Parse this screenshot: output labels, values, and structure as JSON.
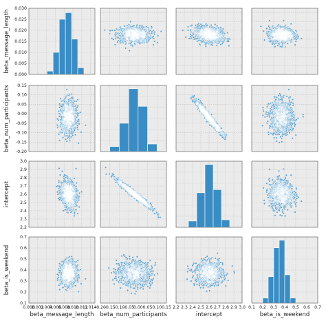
{
  "chart_data": {
    "type": "scatter",
    "kind": "pairplot",
    "variables": [
      "beta_message_length",
      "beta_num_participants",
      "intercept",
      "beta_is_weekend"
    ],
    "labels": [
      "beta_message_length",
      "beta_num_participants",
      "intercept",
      "beta_is_weekend"
    ],
    "colors": {
      "mark": "#3a8dc4",
      "edge": "#ffffff",
      "panel_bg": "#ebebeb",
      "grid": "#c4c4c4"
    },
    "grid": true,
    "axes": {
      "beta_message_length": {
        "lim": [
          0.0,
          0.015
        ],
        "ticks": [
          "0.000",
          "0.002",
          "0.004",
          "0.006",
          "0.008",
          "0.010",
          "0.012",
          "0.014"
        ],
        "tick_values": [
          0,
          0.002,
          0.004,
          0.006,
          0.008,
          0.01,
          0.012,
          0.014
        ]
      },
      "beta_num_participants": {
        "lim": [
          -0.2,
          0.15
        ],
        "ticks": [
          "-0.20",
          "-0.15",
          "-0.10",
          "-0.05",
          "0.00",
          "0.05",
          "0.10",
          "0.15"
        ],
        "tick_values": [
          -0.2,
          -0.15,
          -0.1,
          -0.05,
          0.0,
          0.05,
          0.1,
          0.15
        ]
      },
      "intercept": {
        "lim": [
          2.2,
          3.0
        ],
        "ticks": [
          "2.2",
          "2.3",
          "2.4",
          "2.5",
          "2.6",
          "2.7",
          "2.8",
          "2.9",
          "3.0"
        ],
        "tick_values": [
          2.2,
          2.3,
          2.4,
          2.5,
          2.6,
          2.7,
          2.8,
          2.9,
          3.0
        ]
      },
      "beta_is_weekend": {
        "lim": [
          0.1,
          0.7
        ],
        "ticks": [
          "0.1",
          "0.2",
          "0.3",
          "0.4",
          "0.5",
          "0.6",
          "0.7"
        ],
        "tick_values": [
          0.1,
          0.2,
          0.3,
          0.4,
          0.5,
          0.6,
          0.7
        ]
      }
    },
    "diag_hist_axes": {
      "ticks": [
        "0.000",
        "0.005",
        "0.010",
        "0.015",
        "0.020",
        "0.025",
        "0.030"
      ],
      "tick_values": [
        0,
        0.005,
        0.01,
        0.015,
        0.02,
        0.025,
        0.03
      ],
      "lim": [
        0,
        0.03
      ]
    },
    "histograms": {
      "beta_message_length": {
        "bin_edges": [
          0.0041,
          0.0055,
          0.0069,
          0.0083,
          0.0097,
          0.0111,
          0.0125
        ],
        "heights": [
          0.0015,
          0.01,
          0.025,
          0.028,
          0.016,
          0.003
        ]
      },
      "beta_num_participants": {
        "bin_edges": [
          -0.15,
          -0.1,
          -0.05,
          0.0,
          0.05,
          0.1
        ],
        "heights": [
          0.08,
          0.45,
          1.0,
          0.72,
          0.12
        ]
      },
      "intercept": {
        "bin_edges": [
          2.35,
          2.45,
          2.55,
          2.65,
          2.75,
          2.85
        ],
        "heights": [
          0.1,
          0.55,
          1.0,
          0.6,
          0.12
        ]
      },
      "beta_is_weekend": {
        "bin_edges": [
          0.2,
          0.25,
          0.3,
          0.35,
          0.4,
          0.45,
          0.5
        ],
        "heights": [
          0.08,
          0.42,
          0.88,
          1.0,
          0.45,
          0.08
        ]
      }
    },
    "distributions": {
      "beta_message_length": {
        "mean": 0.009,
        "sd": 0.0009
      },
      "beta_num_participants": {
        "mean": -0.02,
        "sd": 0.045
      },
      "intercept": {
        "mean": 2.6,
        "sd": 0.085
      },
      "beta_is_weekend": {
        "mean": 0.37,
        "sd": 0.055
      }
    },
    "correlations": [
      [
        "beta_num_participants",
        "intercept",
        -0.97
      ],
      [
        "beta_message_length",
        "intercept",
        -0.25
      ]
    ]
  }
}
